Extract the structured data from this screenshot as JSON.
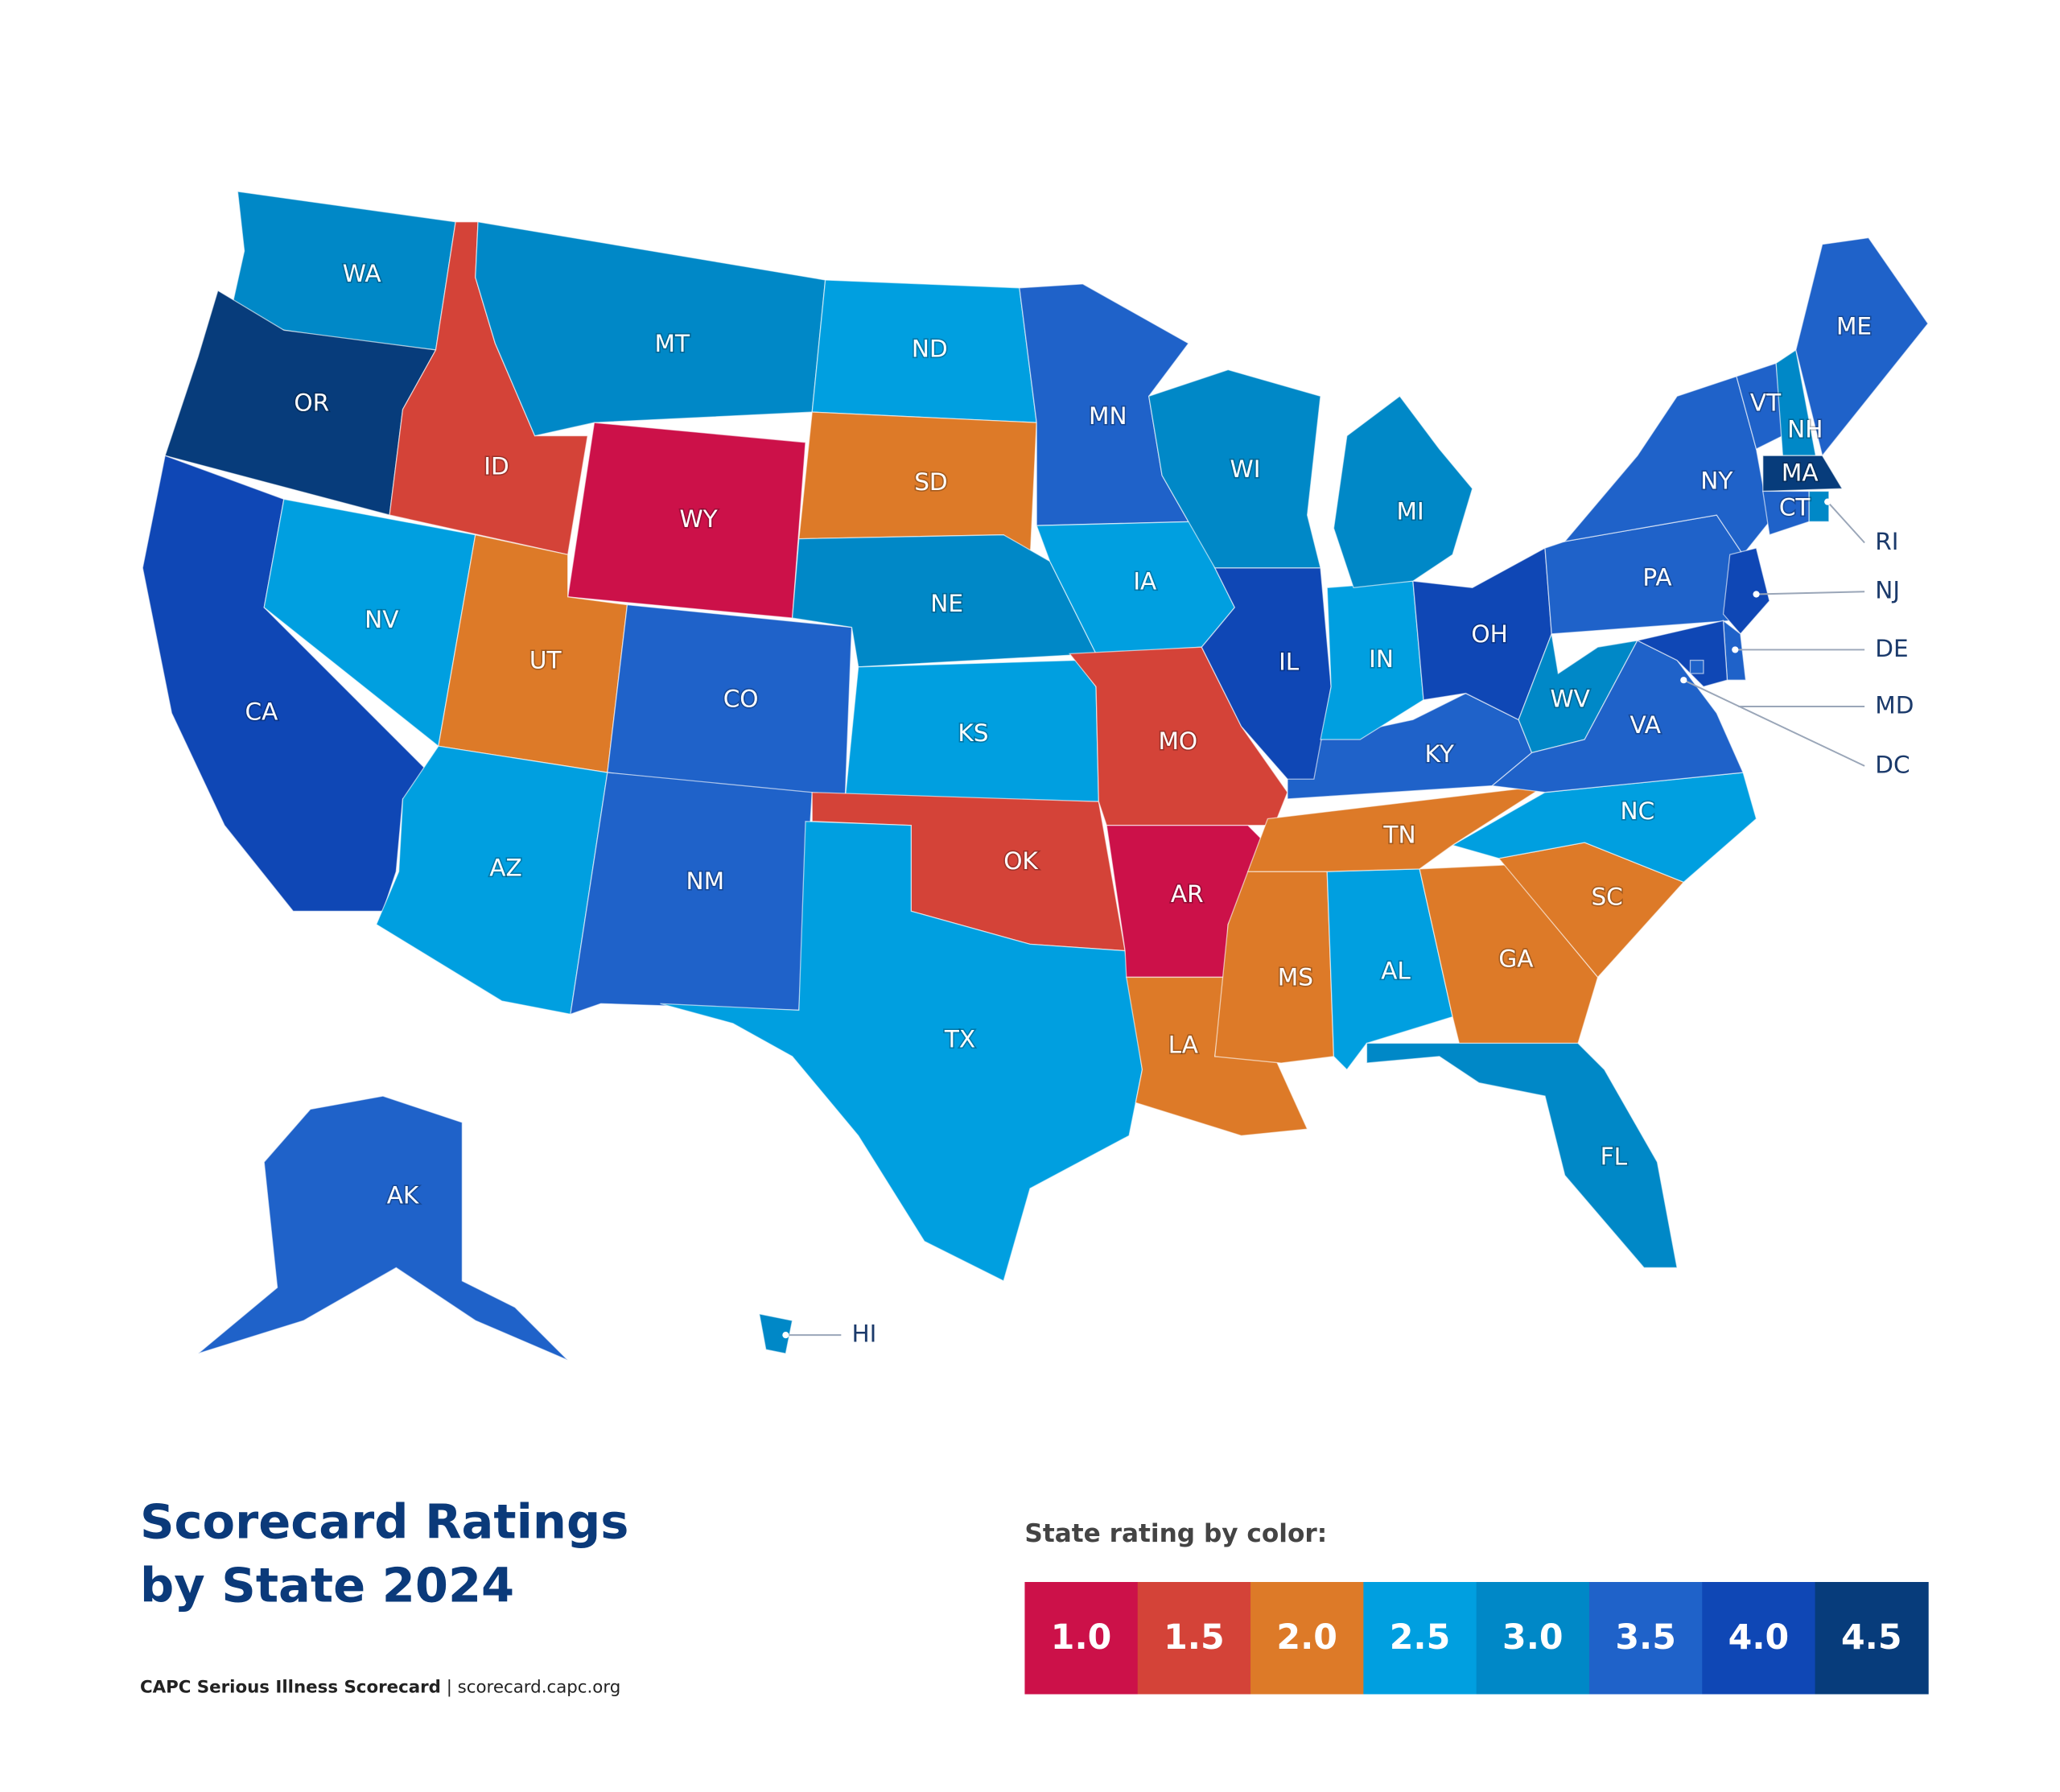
{
  "title_lines": [
    "Scorecard Ratings",
    "by State 2024"
  ],
  "footer": {
    "source": "CAPC Serious Illness Scorecard",
    "url": "| scorecard.capc.org"
  },
  "legend": {
    "title": "State rating by color:",
    "items": [
      {
        "value": 1,
        "label": "1.0",
        "color": "#cc1149"
      },
      {
        "value": 1.5,
        "label": "1.5",
        "color": "#d44338"
      },
      {
        "value": 2,
        "label": "2.0",
        "color": "#dd7a28"
      },
      {
        "value": 2.5,
        "label": "2.5",
        "color": "#009fe0"
      },
      {
        "value": 3,
        "label": "3.0",
        "color": "#0088c7"
      },
      {
        "value": 3.5,
        "label": "3.5",
        "color": "#1f62c9"
      },
      {
        "value": 4,
        "label": "4.0",
        "color": "#0f47b5"
      },
      {
        "value": 4.5,
        "label": "4.5",
        "color": "#073c7b"
      }
    ]
  },
  "states": [
    {
      "name": "WA",
      "rating": 3
    },
    {
      "name": "OR",
      "rating": 4.5
    },
    {
      "name": "CA",
      "rating": 4
    },
    {
      "name": "NV",
      "rating": 2.5
    },
    {
      "name": "ID",
      "rating": 1.5
    },
    {
      "name": "MT",
      "rating": 3
    },
    {
      "name": "WY",
      "rating": 1
    },
    {
      "name": "UT",
      "rating": 2
    },
    {
      "name": "CO",
      "rating": 3.5
    },
    {
      "name": "AZ",
      "rating": 2.5
    },
    {
      "name": "NM",
      "rating": 3.5
    },
    {
      "name": "ND",
      "rating": 2.5
    },
    {
      "name": "SD",
      "rating": 2
    },
    {
      "name": "NE",
      "rating": 3
    },
    {
      "name": "KS",
      "rating": 2.5
    },
    {
      "name": "OK",
      "rating": 1.5
    },
    {
      "name": "TX",
      "rating": 2.5
    },
    {
      "name": "MN",
      "rating": 3.5
    },
    {
      "name": "IA",
      "rating": 2.5
    },
    {
      "name": "MO",
      "rating": 1.5
    },
    {
      "name": "AR",
      "rating": 1
    },
    {
      "name": "LA",
      "rating": 2
    },
    {
      "name": "MS",
      "rating": 2
    },
    {
      "name": "AL",
      "rating": 2.5
    },
    {
      "name": "GA",
      "rating": 2
    },
    {
      "name": "FL",
      "rating": 3
    },
    {
      "name": "SC",
      "rating": 2
    },
    {
      "name": "NC",
      "rating": 2.5
    },
    {
      "name": "TN",
      "rating": 2
    },
    {
      "name": "KY",
      "rating": 3.5
    },
    {
      "name": "IL",
      "rating": 4
    },
    {
      "name": "IN",
      "rating": 2.5
    },
    {
      "name": "OH",
      "rating": 4
    },
    {
      "name": "WI",
      "rating": 3
    },
    {
      "name": "MI",
      "rating": 3
    },
    {
      "name": "WV",
      "rating": 3
    },
    {
      "name": "VA",
      "rating": 3.5
    },
    {
      "name": "PA",
      "rating": 3.5
    },
    {
      "name": "NY",
      "rating": 3.5
    },
    {
      "name": "VT",
      "rating": 3.5
    },
    {
      "name": "NH",
      "rating": 3
    },
    {
      "name": "ME",
      "rating": 3.5
    },
    {
      "name": "MA",
      "rating": 4.5
    },
    {
      "name": "CT",
      "rating": 3.5
    },
    {
      "name": "RI",
      "rating": 3
    },
    {
      "name": "NJ",
      "rating": 4
    },
    {
      "name": "DE",
      "rating": 3.5
    },
    {
      "name": "MD",
      "rating": 4
    },
    {
      "name": "DC",
      "rating": 3.5
    },
    {
      "name": "AK",
      "rating": 3.5
    },
    {
      "name": "HI",
      "rating": 3
    }
  ]
}
